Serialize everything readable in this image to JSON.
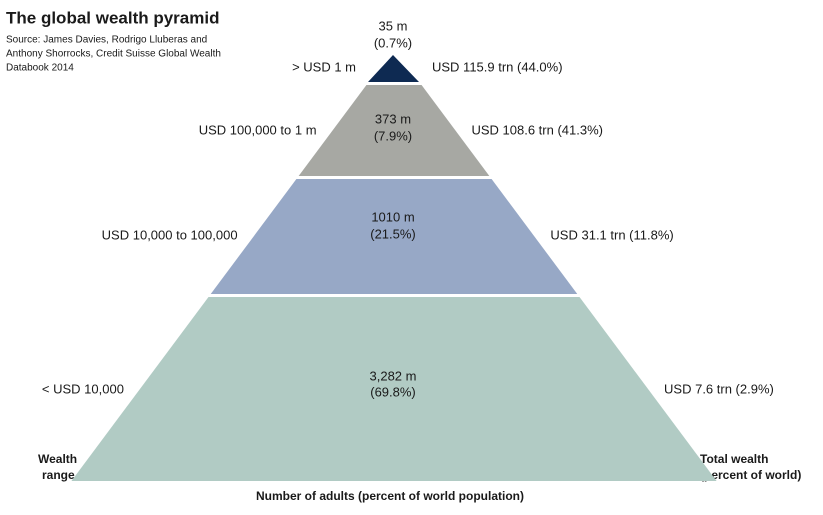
{
  "header": {
    "title": "The global wealth pyramid",
    "source": [
      "Source: James Davies, Rodrigo Lluberas and",
      "Anthony Shorrocks, Credit Suisse Global Wealth",
      "Databook 2014"
    ]
  },
  "levels": [
    {
      "adults": "35 m",
      "share": "(0.7%)",
      "range": "> USD 1 m",
      "wealth": "USD 115.9 trn (44.0%)",
      "color": "#0e2a52"
    },
    {
      "adults": "373 m",
      "share": "(7.9%)",
      "range": "USD 100,000 to 1 m",
      "wealth": "USD 108.6 trn (41.3%)",
      "color": "#a7a8a3"
    },
    {
      "adults": "1010 m",
      "share": "(21.5%)",
      "range": "USD 10,000 to 100,000",
      "wealth": "USD 31.1 trn (11.8%)",
      "color": "#97a8c6"
    },
    {
      "adults": "3,282 m",
      "share": "(69.8%)",
      "range": "< USD 10,000",
      "wealth": "USD 7.6 trn (2.9%)",
      "color": "#b1cbc4"
    }
  ],
  "labels": {
    "left": [
      "Wealth",
      "range"
    ],
    "right": [
      "Total wealth",
      "(percent of world)"
    ],
    "bottom": "Number of adults (percent of world population)"
  }
}
